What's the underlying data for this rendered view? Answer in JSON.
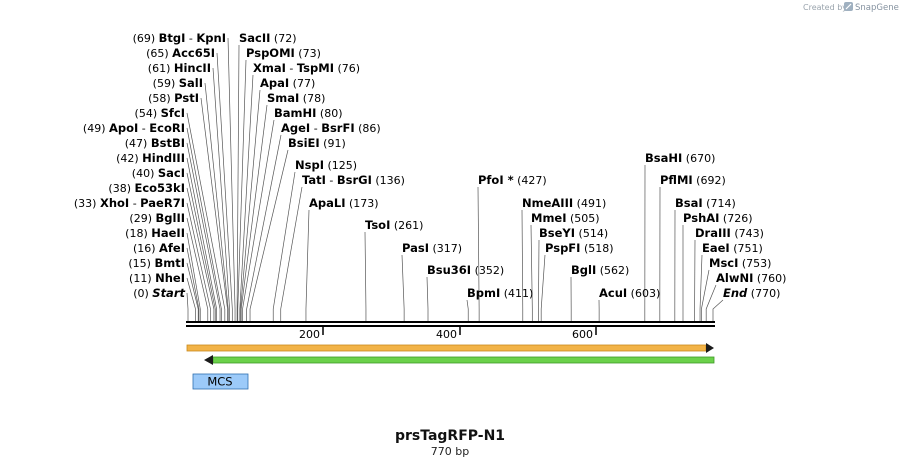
{
  "credit": {
    "prefix": "Created by",
    "brand": "SnapGene"
  },
  "plasmid": {
    "name": "prsTagRFP-N1",
    "length_label": "770 bp",
    "length": 770
  },
  "ruler": {
    "ticks": [
      "200",
      "400",
      "600"
    ]
  },
  "features": [
    {
      "name": "MCS",
      "color": "#9ccaf9"
    },
    {
      "name": "orange-arrow",
      "color": "#f2b347",
      "direction": "forward"
    },
    {
      "name": "green-arrow",
      "color": "#6bd14a",
      "direction": "reverse"
    }
  ],
  "sites": [
    {
      "name": "Start",
      "pos": "(0)"
    },
    {
      "name": "NheI",
      "pos": "(11)"
    },
    {
      "name": "BmtI",
      "pos": "(15)"
    },
    {
      "name": "AfeI",
      "pos": "(16)"
    },
    {
      "name": "HaeII",
      "pos": "(18)"
    },
    {
      "name": "BglII",
      "pos": "(29)"
    },
    {
      "name": "XhoI",
      "name2": "PaeR7I",
      "pos": "(33)"
    },
    {
      "name": "Eco53kI",
      "pos": "(38)"
    },
    {
      "name": "SacI",
      "pos": "(40)"
    },
    {
      "name": "HindIII",
      "pos": "(42)"
    },
    {
      "name": "BstBI",
      "pos": "(47)"
    },
    {
      "name": "ApoI",
      "name2": "EcoRI",
      "pos": "(49)"
    },
    {
      "name": "SfcI",
      "pos": "(54)"
    },
    {
      "name": "PstI",
      "pos": "(58)"
    },
    {
      "name": "SalI",
      "pos": "(59)"
    },
    {
      "name": "HincII",
      "pos": "(61)"
    },
    {
      "name": "Acc65I",
      "pos": "(65)"
    },
    {
      "name": "BtgI",
      "name2": "KpnI",
      "pos": "(69)"
    },
    {
      "name": "SacII",
      "pos": "(72)"
    },
    {
      "name": "PspOMI",
      "pos": "(73)"
    },
    {
      "name": "XmaI",
      "name2": "TspMI",
      "pos": "(76)"
    },
    {
      "name": "ApaI",
      "pos": "(77)"
    },
    {
      "name": "SmaI",
      "pos": "(78)"
    },
    {
      "name": "BamHI",
      "pos": "(80)"
    },
    {
      "name": "AgeI",
      "name2": "BsrFI",
      "pos": "(86)"
    },
    {
      "name": "BsiEI",
      "pos": "(91)"
    },
    {
      "name": "NspI",
      "pos": "(125)"
    },
    {
      "name": "TatI",
      "name2": "BsrGI",
      "pos": "(136)"
    },
    {
      "name": "ApaLI",
      "pos": "(173)"
    },
    {
      "name": "TsoI",
      "pos": "(261)"
    },
    {
      "name": "PasI",
      "pos": "(317)"
    },
    {
      "name": "Bsu36I",
      "pos": "(352)"
    },
    {
      "name": "BpmI",
      "pos": "(411)"
    },
    {
      "name": "PfoI *",
      "pos": "(427)"
    },
    {
      "name": "NmeAIII",
      "pos": "(491)"
    },
    {
      "name": "MmeI",
      "pos": "(505)"
    },
    {
      "name": "BseYI",
      "pos": "(514)"
    },
    {
      "name": "PspFI",
      "pos": "(518)"
    },
    {
      "name": "BglI",
      "pos": "(562)"
    },
    {
      "name": "AcuI",
      "pos": "(603)"
    },
    {
      "name": "BsaHI",
      "pos": "(670)"
    },
    {
      "name": "PflMI",
      "pos": "(692)"
    },
    {
      "name": "BsaI",
      "pos": "(714)"
    },
    {
      "name": "PshAI",
      "pos": "(726)"
    },
    {
      "name": "DraIII",
      "pos": "(743)"
    },
    {
      "name": "EaeI",
      "pos": "(751)"
    },
    {
      "name": "MscI",
      "pos": "(753)"
    },
    {
      "name": "AlwNI",
      "pos": "(760)"
    },
    {
      "name": "End",
      "pos": "(770)"
    }
  ]
}
